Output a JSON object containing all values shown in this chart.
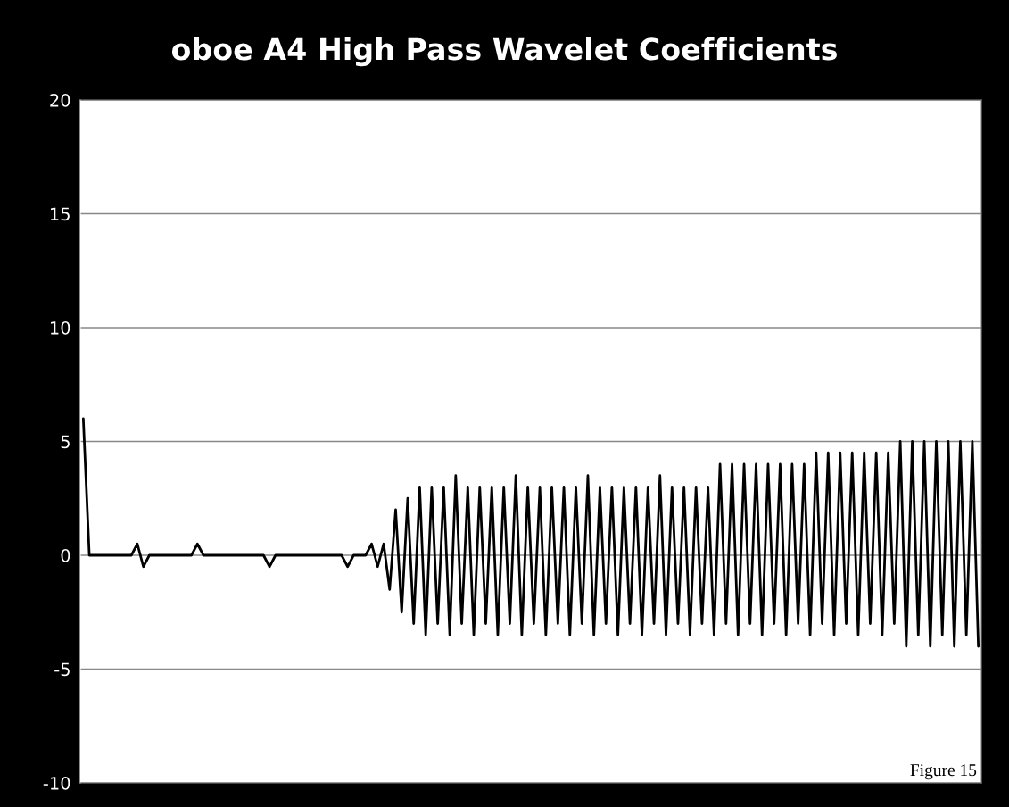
{
  "chart_data": {
    "type": "line",
    "title": "oboe A4 High Pass Wavelet Coefficients",
    "categories": [
      null,
      null,
      null,
      null,
      null,
      null,
      null,
      null,
      null,
      null,
      null,
      null,
      null,
      null,
      null,
      null,
      null,
      null,
      null,
      null,
      null,
      null,
      null,
      null,
      null,
      null,
      null,
      null,
      null,
      null,
      null,
      null,
      null,
      null,
      null,
      null,
      null,
      null,
      null,
      null,
      null,
      null,
      null,
      null,
      null,
      null,
      null,
      null,
      null,
      null,
      null,
      null,
      null,
      null,
      null,
      null,
      null,
      null,
      null,
      null,
      null,
      null,
      null,
      null,
      null,
      null,
      null,
      null,
      null,
      null,
      null,
      null,
      null,
      null,
      null,
      null,
      null,
      null,
      null,
      null,
      null,
      null,
      null,
      null,
      null,
      null,
      null,
      null,
      null,
      null,
      null,
      null,
      null,
      null,
      null,
      null,
      null,
      null,
      null,
      null,
      null,
      null,
      null,
      null,
      null,
      null,
      null,
      null,
      null,
      null,
      null,
      null,
      null,
      null,
      null,
      null,
      null,
      null,
      null,
      null,
      null,
      null,
      null,
      null,
      null,
      null,
      null,
      null,
      null,
      null,
      null,
      null,
      null,
      null,
      null,
      null,
      null,
      null,
      null,
      null,
      null,
      null,
      null,
      null,
      null,
      null,
      null,
      null,
      null,
      null
    ],
    "values": [
      6,
      0,
      0,
      0,
      0,
      0,
      0,
      0,
      0,
      0.5,
      -0.5,
      0,
      0,
      0,
      0,
      0,
      0,
      0,
      0,
      0.5,
      0,
      0,
      0,
      0,
      0,
      0,
      0,
      0,
      0,
      0,
      0,
      -0.5,
      0,
      0,
      0,
      0,
      0,
      0,
      0,
      0,
      0,
      0,
      0,
      0,
      -0.5,
      0,
      0,
      0,
      0.5,
      -0.5,
      0.5,
      -1.5,
      2,
      -2.5,
      2.5,
      -3,
      3,
      -3.5,
      3,
      -3,
      3,
      -3.5,
      3.5,
      -3,
      3,
      -3.5,
      3,
      -3,
      3,
      -3.5,
      3,
      -3,
      3.5,
      -3.5,
      3,
      -3,
      3,
      -3.5,
      3,
      -3,
      3,
      -3.5,
      3,
      -3,
      3.5,
      -3.5,
      3,
      -3,
      3,
      -3.5,
      3,
      -3,
      3,
      -3.5,
      3,
      -3,
      3.5,
      -3.5,
      3,
      -3,
      3,
      -3.5,
      3,
      -3,
      3,
      -3.5,
      4,
      -3,
      4,
      -3.5,
      4,
      -3,
      4,
      -3.5,
      4,
      -3,
      4,
      -3.5,
      4,
      -3,
      4,
      -3.5,
      4.5,
      -3,
      4.5,
      -3.5,
      4.5,
      -3,
      4.5,
      -3.5,
      4.5,
      -3,
      4.5,
      -3.5,
      4.5,
      -3,
      5,
      -4,
      5,
      -3.5,
      5,
      -4,
      5,
      -3.5,
      5,
      -4,
      5,
      -3.5,
      5,
      -4
    ],
    "color": "#000000",
    "ylim": [
      -10,
      20
    ],
    "yticks": [
      -10,
      -5,
      0,
      5,
      10,
      15,
      20
    ],
    "grid": "y",
    "tick_labels": "y",
    "legend": false,
    "annotations": [
      "Figure 15"
    ]
  }
}
